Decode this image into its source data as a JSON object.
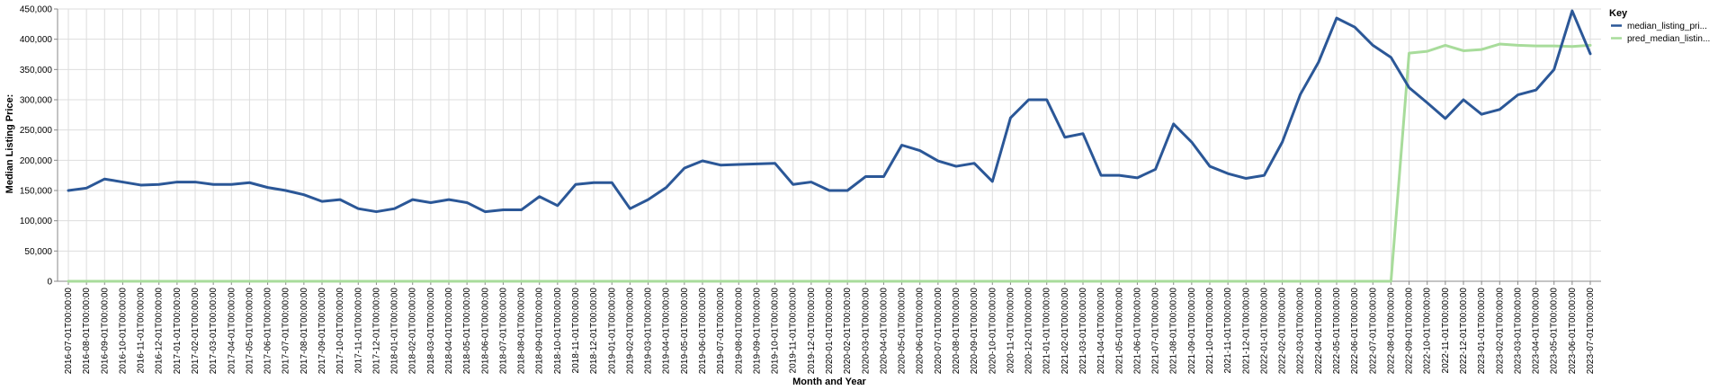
{
  "chart_data": {
    "type": "line",
    "xlabel": "Month and Year",
    "ylabel": "Median Listing Price:",
    "ylim": [
      0,
      450000
    ],
    "yticks": [
      0,
      50000,
      100000,
      150000,
      200000,
      250000,
      300000,
      350000,
      400000,
      450000
    ],
    "ytick_labels": [
      "0",
      "50,000",
      "100,000",
      "150,000",
      "200,000",
      "250,000",
      "300,000",
      "350,000",
      "400,000",
      "450,000"
    ],
    "grid": true,
    "legend_title": "Key",
    "legend_position": "right",
    "x": [
      "2016-07-01T00:00:00",
      "2016-08-01T00:00:00",
      "2016-09-01T00:00:00",
      "2016-10-01T00:00:00",
      "2016-11-01T00:00:00",
      "2016-12-01T00:00:00",
      "2017-01-01T00:00:00",
      "2017-02-01T00:00:00",
      "2017-03-01T00:00:00",
      "2017-04-01T00:00:00",
      "2017-05-01T00:00:00",
      "2017-06-01T00:00:00",
      "2017-07-01T00:00:00",
      "2017-08-01T00:00:00",
      "2017-09-01T00:00:00",
      "2017-10-01T00:00:00",
      "2017-11-01T00:00:00",
      "2017-12-01T00:00:00",
      "2018-01-01T00:00:00",
      "2018-02-01T00:00:00",
      "2018-03-01T00:00:00",
      "2018-04-01T00:00:00",
      "2018-05-01T00:00:00",
      "2018-06-01T00:00:00",
      "2018-07-01T00:00:00",
      "2018-08-01T00:00:00",
      "2018-09-01T00:00:00",
      "2018-10-01T00:00:00",
      "2018-11-01T00:00:00",
      "2018-12-01T00:00:00",
      "2019-01-01T00:00:00",
      "2019-02-01T00:00:00",
      "2019-03-01T00:00:00",
      "2019-04-01T00:00:00",
      "2019-05-01T00:00:00",
      "2019-06-01T00:00:00",
      "2019-07-01T00:00:00",
      "2019-08-01T00:00:00",
      "2019-09-01T00:00:00",
      "2019-10-01T00:00:00",
      "2019-11-01T00:00:00",
      "2019-12-01T00:00:00",
      "2020-01-01T00:00:00",
      "2020-02-01T00:00:00",
      "2020-03-01T00:00:00",
      "2020-04-01T00:00:00",
      "2020-05-01T00:00:00",
      "2020-06-01T00:00:00",
      "2020-07-01T00:00:00",
      "2020-08-01T00:00:00",
      "2020-09-01T00:00:00",
      "2020-10-01T00:00:00",
      "2020-11-01T00:00:00",
      "2020-12-01T00:00:00",
      "2021-01-01T00:00:00",
      "2021-02-01T00:00:00",
      "2021-03-01T00:00:00",
      "2021-04-01T00:00:00",
      "2021-05-01T00:00:00",
      "2021-06-01T00:00:00",
      "2021-07-01T00:00:00",
      "2021-08-01T00:00:00",
      "2021-09-01T00:00:00",
      "2021-10-01T00:00:00",
      "2021-11-01T00:00:00",
      "2021-12-01T00:00:00",
      "2022-01-01T00:00:00",
      "2022-02-01T00:00:00",
      "2022-03-01T00:00:00",
      "2022-04-01T00:00:00",
      "2022-05-01T00:00:00",
      "2022-06-01T00:00:00",
      "2022-07-01T00:00:00",
      "2022-08-01T00:00:00",
      "2022-09-01T00:00:00",
      "2022-10-01T00:00:00",
      "2022-11-01T00:00:00",
      "2022-12-01T00:00:00",
      "2023-01-01T00:00:00",
      "2023-02-01T00:00:00",
      "2023-03-01T00:00:00",
      "2023-04-01T00:00:00",
      "2023-05-01T00:00:00",
      "2023-06-01T00:00:00",
      "2023-07-01T00:00:00"
    ],
    "series": [
      {
        "name": "median_listing_pri...",
        "color": "#2b5797",
        "values": [
          150000,
          154000,
          169000,
          164000,
          159000,
          160000,
          164000,
          164000,
          160000,
          160000,
          163000,
          155000,
          150000,
          143000,
          132000,
          135000,
          120000,
          115000,
          120000,
          135000,
          130000,
          135000,
          130000,
          115000,
          118000,
          118000,
          140000,
          125000,
          160000,
          163000,
          163000,
          120000,
          135000,
          155000,
          187000,
          199000,
          192000,
          193000,
          194000,
          195000,
          160000,
          164000,
          150000,
          150000,
          173000,
          173000,
          225000,
          216000,
          199000,
          190000,
          195000,
          165000,
          270000,
          300000,
          300000,
          238000,
          244000,
          175000,
          175000,
          171000,
          185000,
          260000,
          230000,
          190000,
          178000,
          170000,
          175000,
          230000,
          309000,
          362000,
          435000,
          420000,
          390000,
          370000,
          320000,
          295000,
          269000,
          300000,
          276000,
          284000,
          308000,
          316000,
          350000,
          447000,
          376000
        ]
      },
      {
        "name": "pred_median_listin...",
        "color": "#a8dc9b",
        "values": [
          0,
          0,
          0,
          0,
          0,
          0,
          0,
          0,
          0,
          0,
          0,
          0,
          0,
          0,
          0,
          0,
          0,
          0,
          0,
          0,
          0,
          0,
          0,
          0,
          0,
          0,
          0,
          0,
          0,
          0,
          0,
          0,
          0,
          0,
          0,
          0,
          0,
          0,
          0,
          0,
          0,
          0,
          0,
          0,
          0,
          0,
          0,
          0,
          0,
          0,
          0,
          0,
          0,
          0,
          0,
          0,
          0,
          0,
          0,
          0,
          0,
          0,
          0,
          0,
          0,
          0,
          0,
          0,
          0,
          0,
          0,
          0,
          0,
          0,
          377000,
          380000,
          390000,
          381000,
          383000,
          392000,
          390000,
          389000,
          389000,
          388000,
          390000
        ]
      }
    ]
  }
}
